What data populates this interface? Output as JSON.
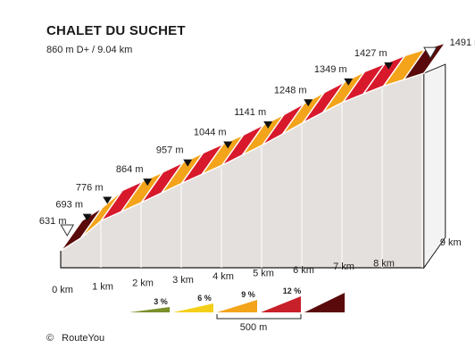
{
  "header": {
    "title": "CHALET DU SUCHET",
    "subtitle": "860 m D+ / 9.04 km"
  },
  "credit": {
    "symbol": "©",
    "text": "RouteYou"
  },
  "chart_data": {
    "type": "area",
    "title": "CHALET DU SUCHET",
    "subtitle": "860 m D+ / 9.04 km",
    "x_unit": "km",
    "distance_km": 9.04,
    "x_ticks": [
      "0 km",
      "1 km",
      "2 km",
      "3 km",
      "4 km",
      "5 km",
      "6 km",
      "7 km",
      "8 km",
      "9 km"
    ],
    "points": [
      {
        "km": 0.0,
        "elev": 631,
        "label": "631 m",
        "marker": "start"
      },
      {
        "km": 0.5,
        "elev": 693,
        "label": "693 m",
        "marker": "arrow"
      },
      {
        "km": 1.0,
        "elev": 776,
        "label": "776 m",
        "marker": "arrow"
      },
      {
        "km": 2.0,
        "elev": 864,
        "label": "864 m",
        "marker": "arrow"
      },
      {
        "km": 3.0,
        "elev": 957,
        "label": "957 m",
        "marker": "arrow"
      },
      {
        "km": 4.0,
        "elev": 1044,
        "label": "1044 m",
        "marker": "arrow"
      },
      {
        "km": 5.0,
        "elev": 1141,
        "label": "1141 m",
        "marker": "arrow"
      },
      {
        "km": 6.0,
        "elev": 1248,
        "label": "1248 m",
        "marker": "arrow"
      },
      {
        "km": 7.0,
        "elev": 1349,
        "label": "1349 m",
        "marker": "arrow"
      },
      {
        "km": 8.0,
        "elev": 1427,
        "label": "1427 m",
        "marker": "arrow"
      },
      {
        "km": 9.04,
        "elev": 1491,
        "label": "1491 m",
        "marker": "end"
      }
    ],
    "segment_colors": [
      "#5a0a0a",
      "#f3a41a",
      "#d8192c",
      "#f3a41a",
      "#d8192c",
      "#f3a41a",
      "#d8192c",
      "#f3a41a",
      "#d8192c",
      "#f3a41a",
      "#d8192c",
      "#f3a41a",
      "#d8192c",
      "#f3a41a",
      "#d8192c",
      "#d8192c",
      "#f3a41a",
      "#5a0a0a"
    ],
    "legend": {
      "items": [
        {
          "label": "3 %",
          "color": "#7b8f2a"
        },
        {
          "label": "6 %",
          "color": "#f4cf1a"
        },
        {
          "label": "9 %",
          "color": "#f3a41a"
        },
        {
          "label": "12 %",
          "color": "#c8202a"
        },
        {
          "label": "",
          "color": "#5a0a0a"
        }
      ],
      "scale_label": "500 m"
    }
  }
}
